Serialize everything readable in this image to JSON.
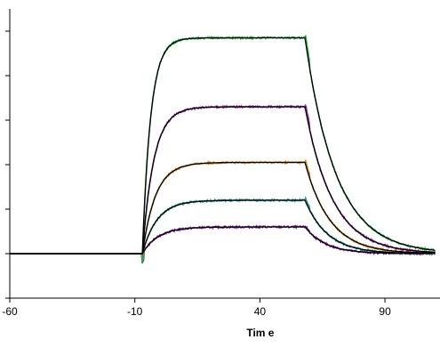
{
  "chart_data": {
    "type": "line",
    "title": "",
    "xlabel": "Tim e",
    "ylabel": "",
    "xlim": [
      -60,
      112
    ],
    "ylim": [
      -20,
      110
    ],
    "x_ticks": [
      -60,
      -10,
      40,
      90
    ],
    "x_tick_labels": [
      "-60",
      "-10",
      "40",
      "90"
    ],
    "y_ticks": [
      -20,
      0,
      20,
      40,
      60,
      80,
      100
    ],
    "grid": false,
    "legend": "none",
    "colors": {
      "fit": "#000000",
      "raw": [
        "#7a1e8c",
        "#2a8a86",
        "#c98a2a",
        "#8e2a9a",
        "#2aa84a"
      ]
    },
    "association_start": -7,
    "dissociation_start": 58,
    "series": [
      {
        "plateau": 12,
        "ka": 0.16,
        "kd": 0.12
      },
      {
        "plateau": 24,
        "ka": 0.17,
        "kd": 0.11
      },
      {
        "plateau": 41,
        "ka": 0.19,
        "kd": 0.1
      },
      {
        "plateau": 66,
        "ka": 0.22,
        "kd": 0.09
      },
      {
        "plateau": 97,
        "ka": 0.3,
        "kd": 0.08
      }
    ]
  }
}
